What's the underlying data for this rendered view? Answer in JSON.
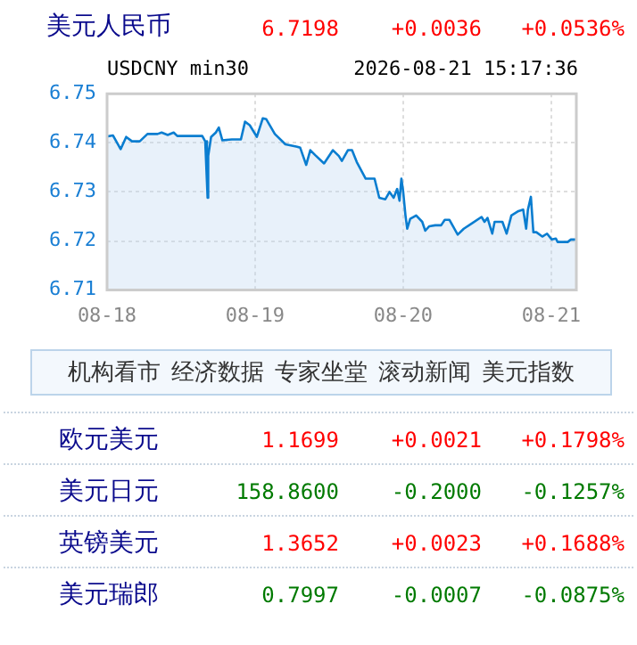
{
  "chart_data": {
    "type": "area",
    "title": "美元人民币",
    "subtitle": "USDCNY min30",
    "annotations": [
      "6.7198",
      "+0.0036",
      "+0.0536%",
      "2026-08-21 15:17:36",
      "机构看市",
      "经济数据",
      "专家坐堂",
      "滚动新闻",
      "美元指数",
      "欧元美元",
      "1.1699",
      "+0.0021",
      "+0.1798%",
      "美元日元",
      "158.8600",
      "-0.2000",
      "-0.1257%",
      "英镑美元",
      "1.3652",
      "+0.0023",
      "+0.1688%",
      "美元瑞郎",
      "0.7997",
      "-0.0007",
      "-0.0875%"
    ],
    "x": [
      "--08-18T00:00",
      "--08-18T00:58",
      "--08-18T02:12",
      "--08-18T03:06",
      "--08-18T04:03",
      "--08-18T05:18",
      "--08-18T06:33",
      "--08-18T08:11",
      "--08-18T08:51",
      "--08-18T09:50",
      "--08-18T10:48",
      "--08-18T11:23",
      "--08-18T15:26",
      "--08-18T15:55",
      "--08-18T16:12",
      "--08-18T16:18",
      "--08-18T16:24",
      "--08-18T16:52",
      "--08-18T17:38",
      "--08-18T18:07",
      "--08-18T18:42",
      "--08-18T20:14",
      "--08-18T21:42",
      "--08-18T22:22",
      "--08-18T23:08",
      "--08-19T00:17",
      "--08-19T01:15",
      "--08-19T01:49",
      "--08-19T03:12",
      "--08-19T04:55",
      "--08-19T06:50",
      "--08-19T07:19",
      "--08-19T08:17",
      "--08-19T08:57",
      "--08-19T09:45",
      "--08-19T11:11",
      "--08-19T12:37",
      "--08-19T13:35",
      "--08-19T14:04",
      "--08-19T15:03",
      "--08-19T15:43",
      "--08-19T16:29",
      "--08-19T17:56",
      "--08-19T19:22",
      "--08-19T20:08",
      "--08-19T21:07",
      "--08-19T21:48",
      "--08-19T22:28",
      "--08-19T23:02",
      "--08-19T23:25",
      "--08-19T23:43",
      "--08-20T00:00",
      "--08-20T00:23",
      "--08-20T00:40",
      "--08-20T01:09",
      "--08-20T02:07",
      "--08-20T03:06",
      "--08-20T03:35",
      "--08-20T04:15",
      "--08-20T05:12",
      "--08-20T06:10",
      "--08-20T06:45",
      "--08-20T07:31",
      "--08-20T08:05",
      "--08-20T08:51",
      "--08-20T09:50",
      "--08-20T11:17",
      "--08-20T12:43",
      "--08-20T13:12",
      "--08-20T13:41",
      "--08-20T14:27",
      "--08-20T14:50",
      "--08-20T16:06",
      "--08-20T16:47",
      "--08-20T17:33",
      "--08-20T18:42",
      "--08-20T19:28",
      "--08-20T19:57",
      "--08-20T20:14",
      "--08-20T20:43",
      "--08-20T21:07",
      "--08-20T21:36",
      "--08-20T22:34",
      "--08-20T23:20",
      "--08-21T00:06",
      "--08-21T00:46",
      "--08-21T01:03",
      "--08-21T02:41",
      "--08-21T03:12",
      "--08-21T04:05"
    ],
    "series": [
      {
        "color": "#0a7dd0",
        "values": [
          6.7413,
          6.7415,
          6.7387,
          6.7412,
          6.7403,
          6.7403,
          6.7418,
          6.7418,
          6.7421,
          6.7416,
          6.7421,
          6.7414,
          6.7414,
          6.7403,
          6.7318,
          6.7288,
          6.7373,
          6.7412,
          6.7421,
          6.7431,
          6.7405,
          6.7407,
          6.7407,
          6.7443,
          6.7436,
          6.7412,
          6.745,
          6.7448,
          6.7418,
          6.7397,
          6.7392,
          6.739,
          6.7355,
          6.7385,
          6.7375,
          6.7358,
          6.7385,
          6.7373,
          6.7363,
          6.7385,
          6.7385,
          6.7361,
          6.7327,
          6.7327,
          6.7288,
          6.7285,
          6.73,
          6.7288,
          6.7306,
          6.7282,
          6.7327,
          6.7302,
          6.7252,
          6.7225,
          6.7245,
          6.7252,
          6.7239,
          6.7221,
          6.723,
          6.7232,
          6.7232,
          6.7243,
          6.7243,
          6.723,
          6.7213,
          6.7225,
          6.7237,
          6.7249,
          6.7239,
          6.7247,
          6.7215,
          6.7239,
          6.7239,
          6.7215,
          6.7252,
          6.7261,
          6.7264,
          6.7225,
          6.7264,
          6.729,
          6.7218,
          6.7218,
          6.7209,
          6.7215,
          6.7203,
          6.7205,
          6.7198,
          6.7198,
          6.7203,
          6.7203
        ]
      }
    ],
    "xlim": [
      "--08-18T00:00",
      "--08-21T04:05"
    ],
    "xticks": [
      {
        "value": "--08-18",
        "label": "08-18"
      },
      {
        "value": "--08-19",
        "label": "08-19"
      },
      {
        "value": "--08-20",
        "label": "08-20"
      },
      {
        "value": "--08-21",
        "label": "08-21"
      }
    ],
    "ylim": [
      6.71,
      6.75
    ],
    "yticks": [
      6.71,
      6.72,
      6.73,
      6.74,
      6.75
    ],
    "grid": true,
    "marker": "none"
  }
}
